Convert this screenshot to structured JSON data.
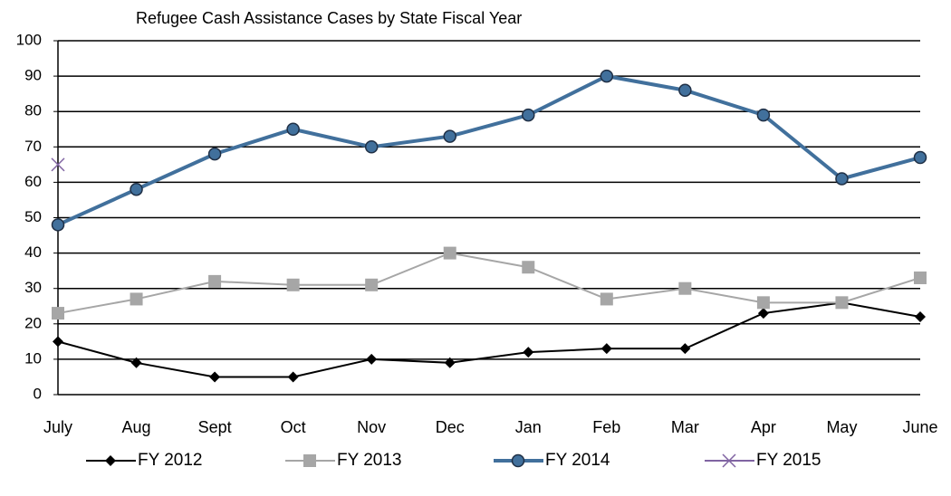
{
  "chart_data": {
    "type": "line",
    "title": "Refugee Cash Assistance Cases by State Fiscal Year",
    "categories": [
      "July",
      "Aug",
      "Sept",
      "Oct",
      "Nov",
      "Dec",
      "Jan",
      "Feb",
      "Mar",
      "Apr",
      "May",
      "June"
    ],
    "series": [
      {
        "name": "FY 2012",
        "color": "#000000",
        "marker": "diamond",
        "values": [
          15,
          9,
          5,
          5,
          10,
          9,
          12,
          13,
          13,
          23,
          26,
          22
        ]
      },
      {
        "name": "FY 2013",
        "color": "#a6a6a6",
        "marker": "square",
        "values": [
          23,
          27,
          32,
          31,
          31,
          40,
          36,
          27,
          30,
          26,
          26,
          33
        ]
      },
      {
        "name": "FY 2014",
        "color": "#41709c",
        "marker": "circle",
        "values": [
          48,
          58,
          68,
          75,
          70,
          73,
          79,
          90,
          86,
          79,
          61,
          67
        ]
      },
      {
        "name": "FY 2015",
        "color": "#8064a2",
        "marker": "x",
        "values": [
          65,
          null,
          null,
          null,
          null,
          null,
          null,
          null,
          null,
          null,
          null,
          null
        ]
      }
    ],
    "ylim": [
      0,
      100
    ],
    "yticks": [
      0,
      10,
      20,
      30,
      40,
      50,
      60,
      70,
      80,
      90,
      100
    ],
    "grid": true,
    "legend": "bottom"
  }
}
